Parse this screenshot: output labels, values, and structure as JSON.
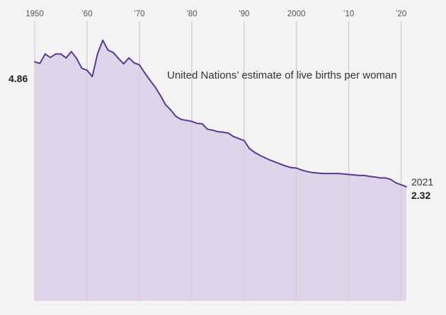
{
  "chart_data": {
    "type": "area",
    "title": "",
    "xlabel": "",
    "ylabel": "",
    "annotation": "United Nations’ estimate of live births per woman",
    "x_ticks": [
      {
        "value": 1950,
        "label": "1950"
      },
      {
        "value": 1960,
        "label": "’60"
      },
      {
        "value": 1970,
        "label": "’70"
      },
      {
        "value": 1980,
        "label": "’80"
      },
      {
        "value": 1990,
        "label": "’90"
      },
      {
        "value": 2000,
        "label": "2000"
      },
      {
        "value": 2010,
        "label": "’10"
      },
      {
        "value": 2020,
        "label": "’20"
      }
    ],
    "xlim": [
      1950,
      2021
    ],
    "ylim": [
      0,
      5.6
    ],
    "grid": true,
    "start_label": "4.86",
    "end_label_year": "2021",
    "end_label_value": "2.32",
    "colors": {
      "line": "#5b3a8e",
      "fill": "#dcd3ea",
      "background": "#f3f3f3",
      "grid": "#c9c9d2"
    },
    "series": [
      {
        "x": [
          1950,
          1951,
          1952,
          1953,
          1954,
          1955,
          1956,
          1957,
          1958,
          1959,
          1960,
          1961,
          1962,
          1963,
          1964,
          1965,
          1966,
          1967,
          1968,
          1969,
          1970,
          1971,
          1972,
          1973,
          1974,
          1975,
          1976,
          1977,
          1978,
          1979,
          1980,
          1981,
          1982,
          1983,
          1984,
          1985,
          1986,
          1987,
          1988,
          1989,
          1990,
          1991,
          1992,
          1993,
          1994,
          1995,
          1996,
          1997,
          1998,
          1999,
          2000,
          2001,
          2002,
          2003,
          2004,
          2005,
          2006,
          2007,
          2008,
          2009,
          2010,
          2011,
          2012,
          2013,
          2014,
          2015,
          2016,
          2017,
          2018,
          2019,
          2020,
          2021
        ],
        "values": [
          4.86,
          4.83,
          5.02,
          4.95,
          5.02,
          5.02,
          4.94,
          5.07,
          4.93,
          4.73,
          4.69,
          4.56,
          5.02,
          5.3,
          5.1,
          5.05,
          4.93,
          4.82,
          4.94,
          4.84,
          4.8,
          4.64,
          4.49,
          4.35,
          4.18,
          3.99,
          3.88,
          3.75,
          3.69,
          3.67,
          3.65,
          3.61,
          3.6,
          3.49,
          3.47,
          3.44,
          3.43,
          3.41,
          3.34,
          3.3,
          3.26,
          3.1,
          3.02,
          2.96,
          2.91,
          2.86,
          2.82,
          2.78,
          2.74,
          2.71,
          2.7,
          2.66,
          2.63,
          2.61,
          2.6,
          2.59,
          2.59,
          2.59,
          2.59,
          2.58,
          2.57,
          2.56,
          2.55,
          2.55,
          2.53,
          2.52,
          2.5,
          2.5,
          2.47,
          2.4,
          2.36,
          2.32
        ]
      }
    ]
  }
}
